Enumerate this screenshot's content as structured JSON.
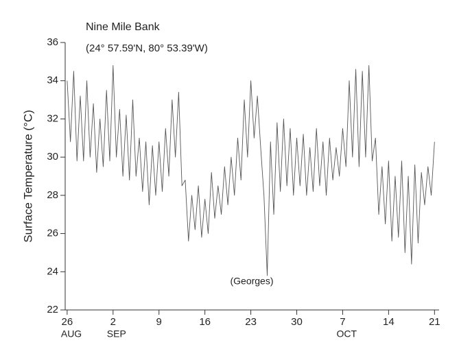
{
  "chart_data": {
    "type": "line",
    "title": "Nine Mile Bank",
    "subtitle": "(24° 57.59'N, 80° 53.39'W)",
    "ylabel": "Surface Temperature (°C)",
    "annotations": [
      "(Georges)"
    ],
    "color": "#555555",
    "x": [
      0,
      0.5,
      1,
      1.5,
      2,
      2.5,
      3,
      3.5,
      4,
      4.5,
      5,
      5.5,
      6,
      6.5,
      7,
      7.5,
      8,
      8.5,
      9,
      9.5,
      10,
      10.5,
      11,
      11.5,
      12,
      12.5,
      13,
      13.5,
      14,
      14.5,
      15,
      15.5,
      16,
      16.5,
      17,
      17.5,
      18,
      18.5,
      19,
      19.5,
      20,
      20.5,
      21,
      21.5,
      22,
      22.5,
      23,
      23.5,
      24,
      24.5,
      25,
      25.5,
      26,
      26.5,
      27,
      27.5,
      28,
      28.5,
      29,
      29.5,
      30,
      30.5,
      31,
      31.5,
      32,
      32.5,
      33,
      33.5,
      34,
      34.5,
      35,
      35.5,
      36,
      36.5,
      37,
      37.5,
      38,
      38.5,
      39,
      39.5,
      40,
      40.5,
      41,
      41.5,
      42,
      42.5,
      43,
      43.5,
      44,
      44.5,
      45,
      45.5,
      46,
      46.5,
      47,
      47.5,
      48,
      48.5,
      49,
      49.5,
      50,
      50.5,
      51,
      51.5,
      52,
      52.5,
      53,
      53.5,
      54,
      54.5,
      55,
      55.5,
      56
    ],
    "values": [
      34.0,
      30.8,
      34.5,
      29.8,
      33.2,
      29.8,
      34.0,
      30.0,
      32.8,
      29.2,
      32.0,
      29.5,
      33.5,
      29.8,
      34.8,
      30.0,
      32.5,
      29.0,
      32.2,
      28.8,
      33.0,
      29.0,
      31.0,
      28.2,
      30.8,
      27.5,
      30.6,
      28.0,
      30.8,
      28.2,
      31.5,
      29.0,
      33.0,
      30.0,
      33.4,
      28.5,
      28.8,
      25.6,
      28.0,
      26.2,
      28.5,
      25.8,
      27.8,
      26.0,
      29.2,
      26.8,
      28.5,
      27.0,
      29.5,
      27.5,
      30.0,
      28.0,
      31.0,
      28.8,
      33.0,
      30.0,
      34.0,
      31.0,
      33.2,
      30.5,
      28.0,
      23.8,
      30.8,
      27.0,
      31.8,
      28.2,
      32.0,
      28.5,
      31.5,
      28.0,
      31.0,
      28.5,
      31.2,
      28.0,
      30.5,
      28.2,
      31.5,
      28.5,
      30.8,
      28.0,
      31.0,
      28.8,
      30.5,
      29.0,
      31.5,
      29.5,
      34.0,
      30.0,
      34.6,
      29.5,
      34.5,
      30.0,
      34.8,
      29.8,
      31.0,
      27.0,
      29.5,
      26.5,
      29.8,
      25.6,
      29.0,
      25.8,
      29.8,
      25.0,
      29.0,
      24.4,
      29.6,
      25.5,
      29.2,
      27.5,
      29.5,
      28.0,
      30.8
    ],
    "xlim": [
      -0.3,
      56.7
    ],
    "xticks": [
      {
        "value": 0,
        "label": "26"
      },
      {
        "value": 7,
        "label": "2"
      },
      {
        "value": 14,
        "label": "9"
      },
      {
        "value": 21,
        "label": "16"
      },
      {
        "value": 28,
        "label": "23"
      },
      {
        "value": 35,
        "label": "30"
      },
      {
        "value": 42,
        "label": "7"
      },
      {
        "value": 49,
        "label": "14"
      },
      {
        "value": 56,
        "label": "21"
      }
    ],
    "month_labels": [
      {
        "value": 0,
        "label": "AUG"
      },
      {
        "value": 7,
        "label": "SEP"
      },
      {
        "value": 42,
        "label": "OCT"
      }
    ],
    "ylim": [
      22,
      36
    ],
    "yticks": [
      22,
      24,
      26,
      28,
      30,
      32,
      34,
      36
    ],
    "grid": false
  }
}
